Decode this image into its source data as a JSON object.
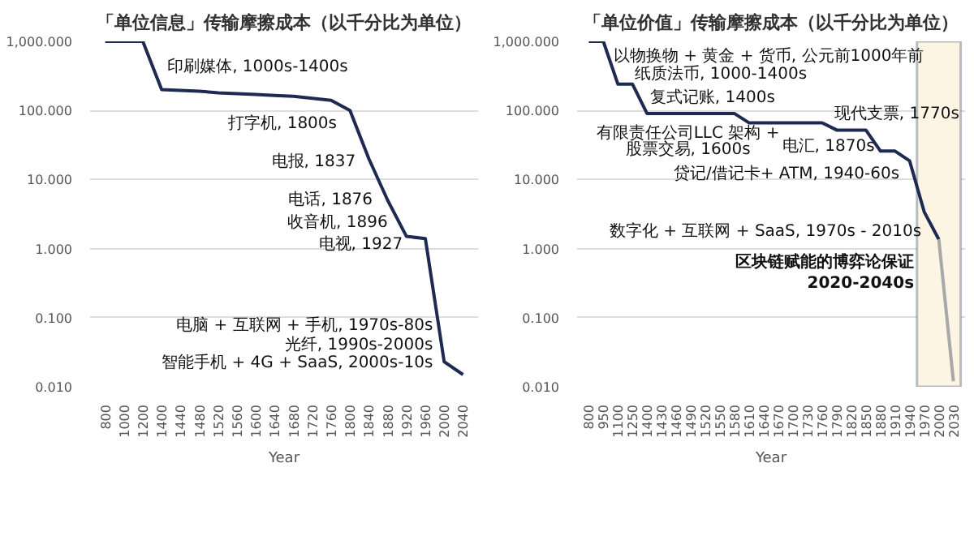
{
  "chart_data": [
    {
      "type": "line",
      "title": "「单位信息」传输摩擦成本（以千分比为单位）",
      "xlabel": "Year",
      "categories": [
        "800",
        "1000",
        "1200",
        "1400",
        "1440",
        "1480",
        "1520",
        "1560",
        "1600",
        "1640",
        "1680",
        "1720",
        "1760",
        "1800",
        "1840",
        "1880",
        "1920",
        "1960",
        "2000",
        "2040"
      ],
      "series": [
        {
          "color": "#1f2a52",
          "values": [
            1000,
            1000,
            1000,
            200,
            195,
            190,
            180,
            175,
            170,
            165,
            160,
            150,
            140,
            100,
            20,
            5,
            1.5,
            1.4,
            0.023,
            0.015
          ]
        }
      ],
      "ylim": [
        0.01,
        1000
      ],
      "yticks": [
        {
          "value": 1000,
          "label": "1,000.000"
        },
        {
          "value": 100,
          "label": "100.000"
        },
        {
          "value": 10,
          "label": "10.000"
        },
        {
          "value": 1,
          "label": "1.000"
        },
        {
          "value": 0.1,
          "label": "0.100"
        },
        {
          "value": 0.01,
          "label": "0.010"
        }
      ],
      "log": true,
      "grid": "y",
      "marker": "none",
      "line_style": "solid",
      "annotations": [
        "印刷媒体, 1000s-1400s",
        "打字机, 1800s",
        "电报, 1837",
        "电话, 1876",
        "收音机, 1896",
        "电视, 1927",
        "电脑 + 互联网 + 手机, 1970s-80s",
        "光纤, 1990s-2000s",
        "智能手机 + 4G + SaaS, 2000s-10s"
      ]
    },
    {
      "type": "line",
      "title": "「单位价值」传输摩擦成本（以千分比为单位）",
      "xlabel": "Year",
      "categories": [
        "800",
        "950",
        "1100",
        "1250",
        "1400",
        "1430",
        "1460",
        "1490",
        "1520",
        "1550",
        "1580",
        "1610",
        "1640",
        "1670",
        "1700",
        "1730",
        "1760",
        "1790",
        "1820",
        "1850",
        "1880",
        "1910",
        "1940",
        "1970",
        "2000",
        "2030"
      ],
      "series": [
        {
          "color": "#1f2a52",
          "values": [
            1000,
            1000,
            240,
            240,
            90,
            90,
            90,
            90,
            90,
            90,
            90,
            66,
            66,
            66,
            66,
            66,
            66,
            52,
            52,
            52,
            25.8,
            25.8,
            18.6,
            3.4,
            1.36,
            null
          ]
        },
        {
          "color": "#a8a8a8",
          "values": [
            null,
            null,
            null,
            null,
            null,
            null,
            null,
            null,
            null,
            null,
            null,
            null,
            null,
            null,
            null,
            null,
            null,
            null,
            null,
            null,
            null,
            null,
            null,
            null,
            1.36,
            0.012
          ]
        }
      ],
      "ylim": [
        0.01,
        1000
      ],
      "yticks": [
        {
          "value": 1000,
          "label": "1,000.000"
        },
        {
          "value": 100,
          "label": "100.000"
        },
        {
          "value": 10,
          "label": "10.000"
        },
        {
          "value": 1,
          "label": "1.000"
        },
        {
          "value": 0.1,
          "label": "0.100"
        },
        {
          "value": 0.01,
          "label": "0.010"
        }
      ],
      "log": true,
      "grid": "y",
      "marker": "none",
      "line_style": "solid",
      "bands": [
        {
          "axis": "x",
          "from": "1970",
          "to": "2030",
          "label": "区块链赋能的博弈论保证\n2020-2040s",
          "color": "#fcf5e4"
        }
      ],
      "annotations": [
        "以物换物 + 黄金 + 货币, 公元前1000年前",
        "纸质法币, 1000-1400s",
        "复式记账, 1400s",
        "有限责任公司LLC 架构 +",
        "股票交易, 1600s",
        "现代支票, 1770s",
        "电汇, 1870s",
        "贷记/借记卡+ ATM, 1940-60s",
        "数字化 + 互联网 + SaaS, 1970s - 2010s"
      ]
    }
  ]
}
